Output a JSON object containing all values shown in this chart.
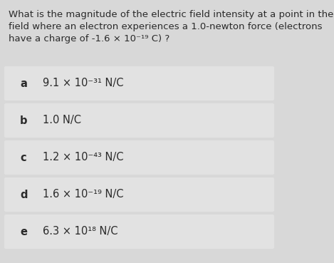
{
  "question_lines": [
    "What is the magnitude of the electric field intensity at a point in the",
    "field where an electron experiences a 1.0-newton force (electrons",
    "have a charge of -1.6 × 10⁻¹⁹ C) ?"
  ],
  "options": [
    {
      "label": "a",
      "base": "9.1 × 10",
      "sup": "⁻³¹",
      "unit": " N/C"
    },
    {
      "label": "b",
      "base": "1.0 N/C",
      "sup": "",
      "unit": ""
    },
    {
      "label": "c",
      "base": "1.2 × 10",
      "sup": "⁻⁴³",
      "unit": " N/C"
    },
    {
      "label": "d",
      "base": "1.6 × 10",
      "sup": "⁻¹⁹",
      "unit": " N/C"
    },
    {
      "label": "e",
      "base": "6.3 × 10",
      "sup": "¹⁸",
      "unit": " N/C"
    }
  ],
  "page_bg": "#d8d8d8",
  "box_bg": "#e2e2e2",
  "text_color": "#2a2a2a",
  "q_fontsize": 9.5,
  "opt_fontsize": 10.5,
  "label_fontsize": 10.5
}
